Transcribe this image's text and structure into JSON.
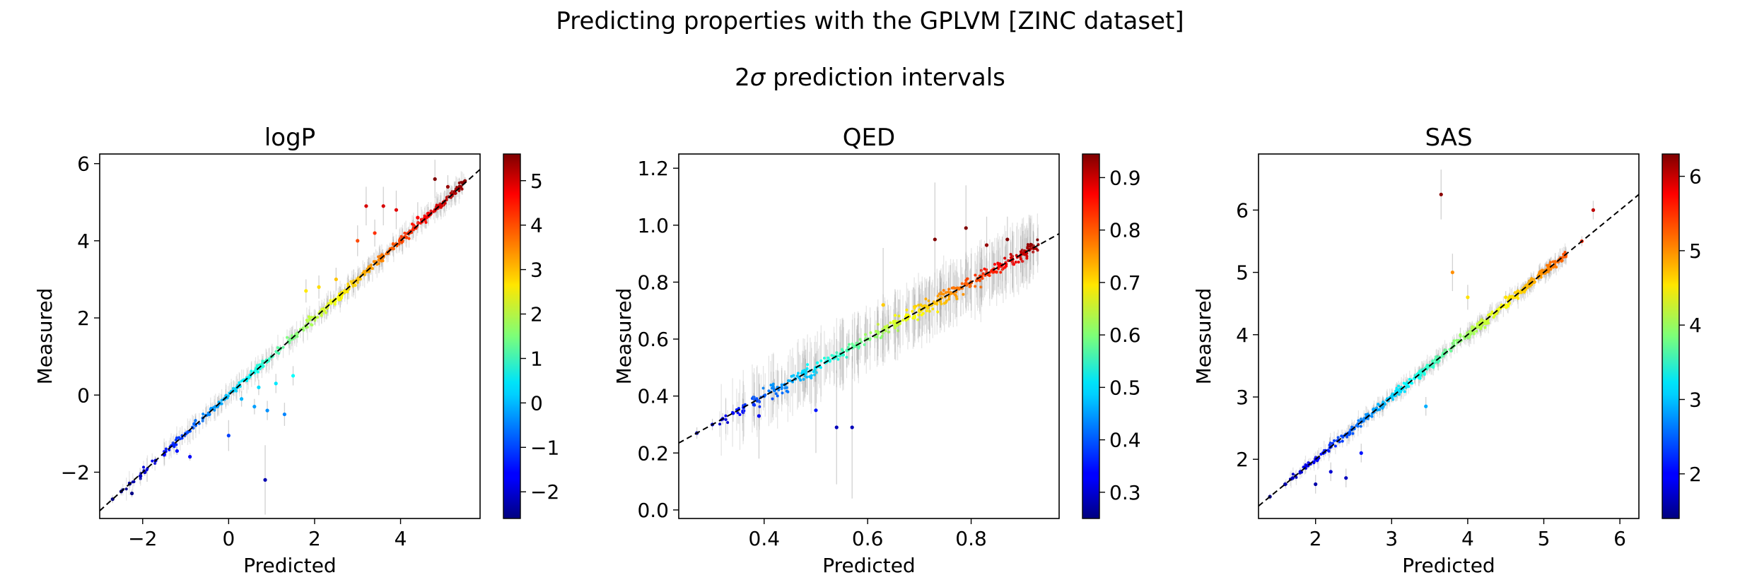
{
  "suptitle": "Predicting properties with the GPLVM [ZINC dataset]",
  "subtitle_prefix": "2",
  "subtitle_symbol": "σ",
  "subtitle_suffix": " prediction intervals",
  "chart_data": [
    {
      "type": "scatter",
      "title": "logP",
      "xlabel": "Predicted",
      "ylabel": "Measured",
      "xlim": [
        -3.0,
        5.85
      ],
      "ylim": [
        -3.2,
        6.25
      ],
      "xticks": [
        -2,
        0,
        2,
        4
      ],
      "xtick_labels": [
        "−2",
        "0",
        "2",
        "4"
      ],
      "yticks": [
        -2,
        0,
        2,
        4,
        6
      ],
      "ytick_labels": [
        "−2",
        "0",
        "2",
        "4",
        "6"
      ],
      "colorbar": {
        "min": -2.6,
        "max": 5.6,
        "ticks": [
          -2,
          -1,
          0,
          1,
          2,
          3,
          4,
          5
        ],
        "tick_labels": [
          "−2",
          "−1",
          "0",
          "1",
          "2",
          "3",
          "4",
          "5"
        ]
      },
      "points": [
        [
          -2.7,
          -2.7,
          0.1
        ],
        [
          -2.5,
          -2.5,
          0.1
        ],
        [
          -2.3,
          -2.3,
          0.1
        ],
        [
          -2.25,
          -2.55,
          0.1
        ],
        [
          -2.05,
          -2.1,
          0.1
        ],
        [
          -1.95,
          -2.0,
          0.1
        ],
        [
          -1.7,
          -1.7,
          0.1
        ],
        [
          -1.5,
          -1.55,
          0.1
        ],
        [
          -1.3,
          -1.3,
          0.1
        ],
        [
          -1.2,
          -1.45,
          0.1
        ],
        [
          -1.0,
          -1.0,
          0.1
        ],
        [
          -0.9,
          -1.6,
          0.1
        ],
        [
          -0.8,
          -0.75,
          0.1
        ],
        [
          -0.6,
          -0.6,
          0.1
        ],
        [
          -0.45,
          -0.5,
          0.1
        ],
        [
          -0.3,
          -0.3,
          0.1
        ],
        [
          -0.1,
          -0.1,
          0.1
        ],
        [
          0.0,
          -1.05,
          0.4
        ],
        [
          0.1,
          0.1,
          0.1
        ],
        [
          0.2,
          0.2,
          0.1
        ],
        [
          0.3,
          -0.1,
          0.2
        ],
        [
          0.4,
          0.4,
          0.1
        ],
        [
          0.5,
          0.5,
          0.1
        ],
        [
          0.6,
          -0.3,
          0.2
        ],
        [
          0.7,
          0.2,
          0.2
        ],
        [
          0.8,
          0.75,
          0.1
        ],
        [
          0.85,
          -2.2,
          0.9
        ],
        [
          0.9,
          -0.4,
          0.25
        ],
        [
          1.0,
          1.0,
          0.1
        ],
        [
          1.1,
          0.3,
          0.25
        ],
        [
          1.2,
          1.2,
          0.1
        ],
        [
          1.3,
          -0.5,
          0.3
        ],
        [
          1.4,
          1.4,
          0.1
        ],
        [
          1.5,
          0.5,
          0.25
        ],
        [
          1.6,
          1.6,
          0.1
        ],
        [
          1.8,
          1.8,
          0.1
        ],
        [
          1.8,
          2.7,
          0.3
        ],
        [
          2.0,
          2.0,
          0.1
        ],
        [
          2.1,
          2.8,
          0.3
        ],
        [
          2.2,
          2.2,
          0.1
        ],
        [
          2.3,
          2.3,
          0.1
        ],
        [
          2.5,
          3.0,
          0.3
        ],
        [
          2.6,
          2.6,
          0.1
        ],
        [
          2.7,
          2.7,
          0.1
        ],
        [
          2.8,
          2.8,
          0.1
        ],
        [
          2.9,
          2.9,
          0.1
        ],
        [
          3.0,
          3.0,
          0.1
        ],
        [
          3.0,
          4.0,
          0.4
        ],
        [
          3.2,
          4.9,
          0.5
        ],
        [
          3.2,
          3.2,
          0.1
        ],
        [
          3.3,
          3.3,
          0.1
        ],
        [
          3.4,
          4.2,
          0.35
        ],
        [
          3.5,
          3.5,
          0.1
        ],
        [
          3.6,
          4.9,
          0.5
        ],
        [
          3.6,
          3.6,
          0.1
        ],
        [
          3.7,
          3.7,
          0.1
        ],
        [
          3.8,
          3.8,
          0.1
        ],
        [
          3.9,
          4.8,
          0.5
        ],
        [
          3.9,
          3.9,
          0.1
        ],
        [
          4.0,
          4.0,
          0.1
        ],
        [
          4.1,
          4.1,
          0.1
        ],
        [
          4.2,
          4.2,
          0.1
        ],
        [
          4.3,
          4.3,
          0.1
        ],
        [
          4.4,
          4.6,
          0.4
        ],
        [
          4.5,
          4.5,
          0.1
        ],
        [
          4.6,
          4.6,
          0.1
        ],
        [
          4.7,
          4.7,
          0.1
        ],
        [
          4.8,
          5.6,
          0.5
        ],
        [
          4.8,
          4.8,
          0.1
        ],
        [
          4.9,
          4.9,
          0.1
        ],
        [
          5.0,
          5.0,
          0.1
        ],
        [
          5.1,
          5.4,
          0.3
        ],
        [
          5.2,
          5.2,
          0.1
        ],
        [
          5.4,
          5.4,
          0.1
        ],
        [
          5.5,
          5.55,
          0.1
        ]
      ]
    },
    {
      "type": "scatter",
      "title": "QED",
      "xlabel": "Predicted",
      "ylabel": "Measured",
      "xlim": [
        0.235,
        0.97
      ],
      "ylim": [
        -0.03,
        1.25
      ],
      "xticks": [
        0.4,
        0.6,
        0.8
      ],
      "xtick_labels": [
        "0.4",
        "0.6",
        "0.8"
      ],
      "yticks": [
        0.0,
        0.2,
        0.4,
        0.6,
        0.8,
        1.0,
        1.2
      ],
      "ytick_labels": [
        "0.0",
        "0.2",
        "0.4",
        "0.6",
        "0.8",
        "1.0",
        "1.2"
      ],
      "colorbar": {
        "min": 0.25,
        "max": 0.945,
        "ticks": [
          0.3,
          0.4,
          0.5,
          0.6,
          0.7,
          0.8,
          0.9
        ],
        "tick_labels": [
          "0.3",
          "0.4",
          "0.5",
          "0.6",
          "0.7",
          "0.8",
          "0.9"
        ]
      },
      "points": [
        [
          0.27,
          0.27,
          0.02
        ],
        [
          0.3,
          0.3,
          0.02
        ],
        [
          0.32,
          0.32,
          0.02
        ],
        [
          0.34,
          0.34,
          0.03
        ],
        [
          0.36,
          0.36,
          0.03
        ],
        [
          0.38,
          0.37,
          0.04
        ],
        [
          0.39,
          0.33,
          0.15
        ],
        [
          0.4,
          0.4,
          0.04
        ],
        [
          0.42,
          0.42,
          0.04
        ],
        [
          0.44,
          0.44,
          0.05
        ],
        [
          0.46,
          0.46,
          0.05
        ],
        [
          0.48,
          0.48,
          0.05
        ],
        [
          0.5,
          0.35,
          0.15
        ],
        [
          0.5,
          0.5,
          0.05
        ],
        [
          0.52,
          0.52,
          0.06
        ],
        [
          0.54,
          0.29,
          0.2
        ],
        [
          0.54,
          0.54,
          0.06
        ],
        [
          0.56,
          0.56,
          0.06
        ],
        [
          0.57,
          0.29,
          0.25
        ],
        [
          0.58,
          0.58,
          0.07
        ],
        [
          0.6,
          0.6,
          0.07
        ],
        [
          0.62,
          0.62,
          0.08
        ],
        [
          0.63,
          0.72,
          0.2
        ],
        [
          0.64,
          0.64,
          0.08
        ],
        [
          0.66,
          0.66,
          0.08
        ],
        [
          0.68,
          0.68,
          0.09
        ],
        [
          0.7,
          0.7,
          0.09
        ],
        [
          0.72,
          0.72,
          0.1
        ],
        [
          0.73,
          0.95,
          0.2
        ],
        [
          0.74,
          0.74,
          0.1
        ],
        [
          0.76,
          0.76,
          0.1
        ],
        [
          0.78,
          0.78,
          0.1
        ],
        [
          0.79,
          0.99,
          0.15
        ],
        [
          0.8,
          0.8,
          0.1
        ],
        [
          0.82,
          0.82,
          0.1
        ],
        [
          0.83,
          0.93,
          0.1
        ],
        [
          0.84,
          0.84,
          0.1
        ],
        [
          0.86,
          0.86,
          0.1
        ],
        [
          0.87,
          0.95,
          0.08
        ],
        [
          0.88,
          0.88,
          0.1
        ],
        [
          0.9,
          0.9,
          0.08
        ],
        [
          0.92,
          0.92,
          0.06
        ]
      ]
    },
    {
      "type": "scatter",
      "title": "SAS",
      "xlabel": "Predicted",
      "ylabel": "Measured",
      "xlim": [
        1.25,
        6.25
      ],
      "ylim": [
        1.05,
        6.9
      ],
      "xticks": [
        2,
        3,
        4,
        5,
        6
      ],
      "xtick_labels": [
        "2",
        "3",
        "4",
        "5",
        "6"
      ],
      "yticks": [
        2,
        3,
        4,
        5,
        6
      ],
      "ytick_labels": [
        "2",
        "3",
        "4",
        "5",
        "6"
      ],
      "colorbar": {
        "min": 1.4,
        "max": 6.3,
        "ticks": [
          2,
          3,
          4,
          5,
          6
        ],
        "tick_labels": [
          "2",
          "3",
          "4",
          "5",
          "6"
        ]
      },
      "points": [
        [
          1.4,
          1.4,
          0.05
        ],
        [
          1.6,
          1.6,
          0.05
        ],
        [
          1.7,
          1.7,
          0.05
        ],
        [
          1.8,
          1.8,
          0.05
        ],
        [
          1.9,
          1.9,
          0.05
        ],
        [
          2.0,
          2.0,
          0.06
        ],
        [
          2.0,
          1.6,
          0.15
        ],
        [
          2.1,
          2.1,
          0.06
        ],
        [
          2.2,
          2.2,
          0.06
        ],
        [
          2.2,
          1.8,
          0.15
        ],
        [
          2.3,
          2.3,
          0.06
        ],
        [
          2.4,
          2.4,
          0.06
        ],
        [
          2.4,
          1.7,
          0.15
        ],
        [
          2.5,
          2.5,
          0.07
        ],
        [
          2.6,
          2.6,
          0.07
        ],
        [
          2.6,
          2.1,
          0.15
        ],
        [
          2.7,
          2.7,
          0.07
        ],
        [
          2.8,
          2.8,
          0.07
        ],
        [
          2.9,
          2.9,
          0.07
        ],
        [
          3.0,
          3.0,
          0.08
        ],
        [
          3.1,
          3.1,
          0.08
        ],
        [
          3.2,
          3.2,
          0.08
        ],
        [
          3.3,
          3.3,
          0.08
        ],
        [
          3.4,
          3.4,
          0.08
        ],
        [
          3.45,
          2.85,
          0.15
        ],
        [
          3.5,
          3.5,
          0.08
        ],
        [
          3.6,
          3.6,
          0.08
        ],
        [
          3.65,
          6.25,
          0.4
        ],
        [
          3.7,
          3.7,
          0.08
        ],
        [
          3.8,
          3.8,
          0.08
        ],
        [
          3.8,
          5.0,
          0.3
        ],
        [
          3.9,
          3.9,
          0.08
        ],
        [
          4.0,
          4.0,
          0.08
        ],
        [
          4.0,
          4.6,
          0.2
        ],
        [
          4.2,
          4.2,
          0.08
        ],
        [
          4.4,
          4.4,
          0.08
        ],
        [
          4.5,
          4.6,
          0.1
        ],
        [
          4.6,
          4.6,
          0.08
        ],
        [
          4.8,
          4.8,
          0.08
        ],
        [
          5.0,
          5.0,
          0.08
        ],
        [
          5.2,
          5.2,
          0.08
        ],
        [
          5.5,
          5.5,
          0.08
        ],
        [
          5.65,
          6.0,
          0.15
        ]
      ]
    }
  ]
}
